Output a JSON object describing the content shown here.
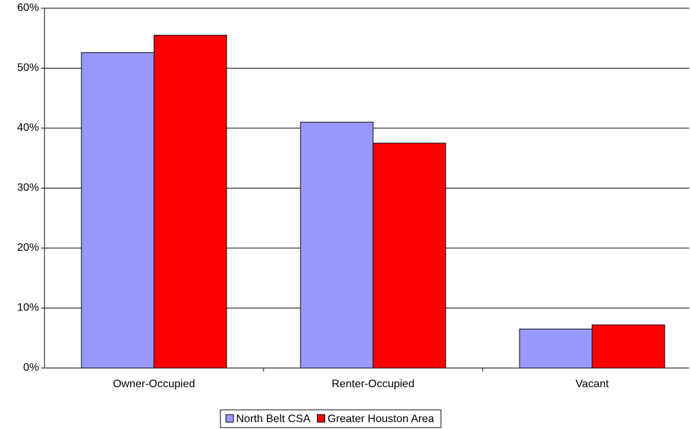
{
  "chart_data": {
    "type": "bar",
    "categories": [
      "Owner-Occupied",
      "Renter-Occupied",
      "Vacant"
    ],
    "series": [
      {
        "name": "North Belt CSA",
        "color": "#9999ff",
        "values": [
          52.6,
          41.0,
          6.5
        ]
      },
      {
        "name": "Greater Houston Area",
        "color": "#ff0000",
        "values": [
          55.5,
          37.5,
          7.2
        ]
      }
    ],
    "ylim": [
      0,
      60
    ],
    "yticks": [
      {
        "value": 0,
        "label": "0%"
      },
      {
        "value": 10,
        "label": "10%"
      },
      {
        "value": 20,
        "label": "20%"
      },
      {
        "value": 30,
        "label": "30%"
      },
      {
        "value": 40,
        "label": "40%"
      },
      {
        "value": 50,
        "label": "50%"
      },
      {
        "value": 60,
        "label": "60%"
      }
    ],
    "grid": true,
    "legend": "bottom"
  }
}
